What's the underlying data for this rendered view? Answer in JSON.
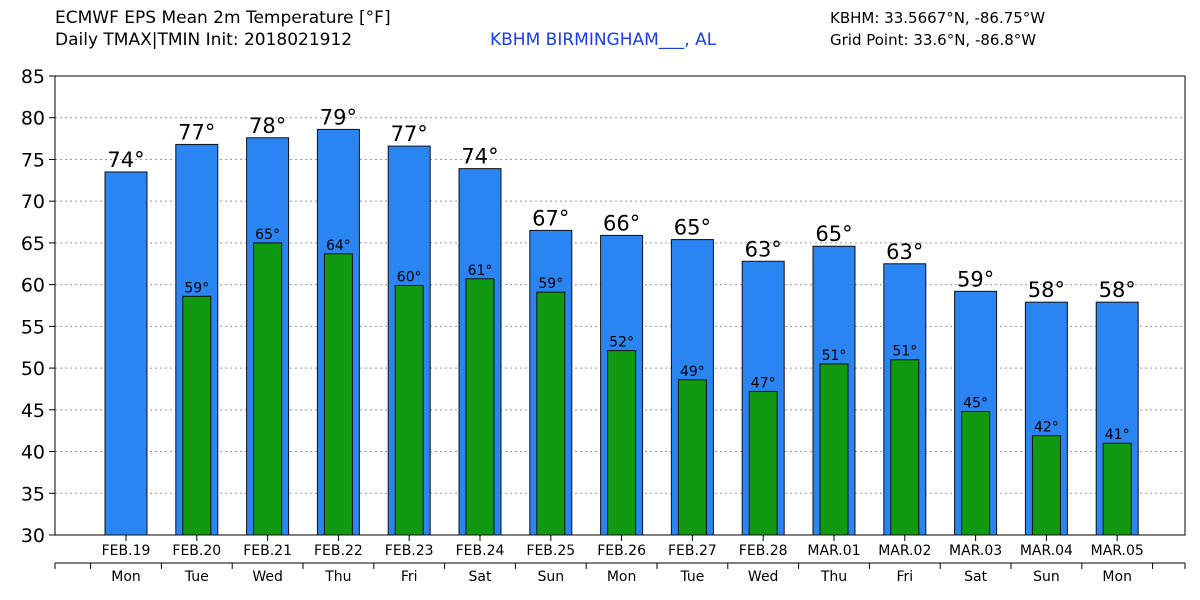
{
  "header": {
    "title_line1": "ECMWF EPS Mean 2m Temperature [°F]",
    "title_line2": "Daily TMAX|TMIN Init: 2018021912",
    "station": "KBHM BIRMINGHAM___, AL",
    "coords_station": "KBHM: 33.5667°N, -86.75°W",
    "coords_grid": "Grid Point: 33.6°N, -86.8°W"
  },
  "colors": {
    "tmax": "#2a84f2",
    "tmin": "#119911",
    "grid": "#999999"
  },
  "chart_data": {
    "type": "bar",
    "title": "ECMWF EPS Mean 2m Temperature [°F]",
    "subtitle": "Daily TMAX|TMIN Init: 2018021912",
    "categories": [
      "FEB.19",
      "FEB.20",
      "FEB.21",
      "FEB.22",
      "FEB.23",
      "FEB.24",
      "FEB.25",
      "FEB.26",
      "FEB.27",
      "FEB.28",
      "MAR.01",
      "MAR.02",
      "MAR.03",
      "MAR.04",
      "MAR.05"
    ],
    "weekdays": [
      "Mon",
      "Tue",
      "Wed",
      "Thu",
      "Fri",
      "Sat",
      "Sun",
      "Mon",
      "Tue",
      "Wed",
      "Thu",
      "Fri",
      "Sat",
      "Sun",
      "Mon"
    ],
    "series": [
      {
        "values": [
          73.5,
          76.8,
          77.6,
          78.6,
          76.6,
          73.9,
          66.5,
          65.9,
          65.4,
          62.8,
          64.6,
          62.5,
          59.2,
          57.9,
          57.9
        ],
        "labels": [
          "74°",
          "77°",
          "78°",
          "79°",
          "77°",
          "74°",
          "67°",
          "66°",
          "65°",
          "63°",
          "65°",
          "63°",
          "59°",
          "58°",
          "58°"
        ]
      },
      {
        "values": [
          null,
          58.6,
          65.0,
          63.7,
          59.9,
          60.7,
          59.1,
          52.1,
          48.6,
          47.2,
          50.5,
          51.0,
          44.8,
          41.9,
          41.0
        ],
        "labels": [
          "",
          "59°",
          "65°",
          "64°",
          "60°",
          "61°",
          "59°",
          "52°",
          "49°",
          "47°",
          "51°",
          "51°",
          "45°",
          "42°",
          "41°"
        ]
      }
    ],
    "yticks": [
      30,
      35,
      40,
      45,
      50,
      55,
      60,
      65,
      70,
      75,
      80,
      85
    ],
    "ylim": [
      30,
      85
    ],
    "grid": true
  }
}
